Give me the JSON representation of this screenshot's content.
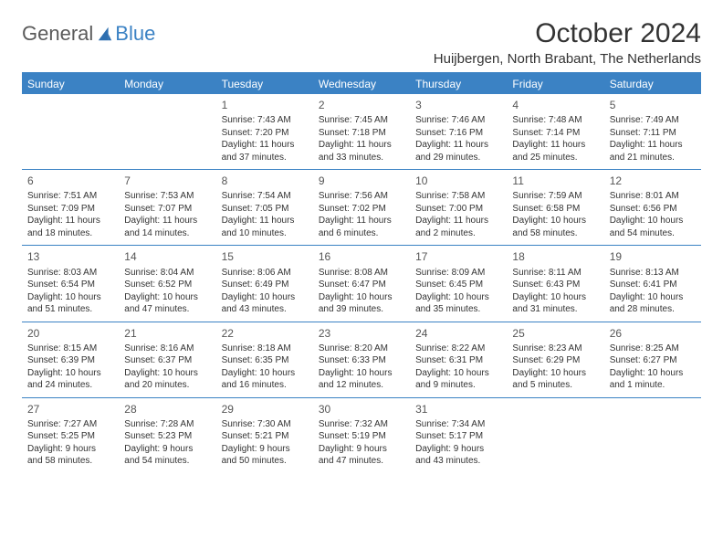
{
  "logo": {
    "part1": "General",
    "part2": "Blue"
  },
  "title": "October 2024",
  "location": "Huijbergen, North Brabant, The Netherlands",
  "colors": {
    "header_bg": "#3b82c4",
    "border": "#3b82c4",
    "text": "#333333",
    "logo_gray": "#5a5a5a",
    "logo_blue": "#3b82c4"
  },
  "day_headers": [
    "Sunday",
    "Monday",
    "Tuesday",
    "Wednesday",
    "Thursday",
    "Friday",
    "Saturday"
  ],
  "weeks": [
    [
      null,
      null,
      {
        "n": "1",
        "sunrise": "7:43 AM",
        "sunset": "7:20 PM",
        "daylight": "11 hours and 37 minutes."
      },
      {
        "n": "2",
        "sunrise": "7:45 AM",
        "sunset": "7:18 PM",
        "daylight": "11 hours and 33 minutes."
      },
      {
        "n": "3",
        "sunrise": "7:46 AM",
        "sunset": "7:16 PM",
        "daylight": "11 hours and 29 minutes."
      },
      {
        "n": "4",
        "sunrise": "7:48 AM",
        "sunset": "7:14 PM",
        "daylight": "11 hours and 25 minutes."
      },
      {
        "n": "5",
        "sunrise": "7:49 AM",
        "sunset": "7:11 PM",
        "daylight": "11 hours and 21 minutes."
      }
    ],
    [
      {
        "n": "6",
        "sunrise": "7:51 AM",
        "sunset": "7:09 PM",
        "daylight": "11 hours and 18 minutes."
      },
      {
        "n": "7",
        "sunrise": "7:53 AM",
        "sunset": "7:07 PM",
        "daylight": "11 hours and 14 minutes."
      },
      {
        "n": "8",
        "sunrise": "7:54 AM",
        "sunset": "7:05 PM",
        "daylight": "11 hours and 10 minutes."
      },
      {
        "n": "9",
        "sunrise": "7:56 AM",
        "sunset": "7:02 PM",
        "daylight": "11 hours and 6 minutes."
      },
      {
        "n": "10",
        "sunrise": "7:58 AM",
        "sunset": "7:00 PM",
        "daylight": "11 hours and 2 minutes."
      },
      {
        "n": "11",
        "sunrise": "7:59 AM",
        "sunset": "6:58 PM",
        "daylight": "10 hours and 58 minutes."
      },
      {
        "n": "12",
        "sunrise": "8:01 AM",
        "sunset": "6:56 PM",
        "daylight": "10 hours and 54 minutes."
      }
    ],
    [
      {
        "n": "13",
        "sunrise": "8:03 AM",
        "sunset": "6:54 PM",
        "daylight": "10 hours and 51 minutes."
      },
      {
        "n": "14",
        "sunrise": "8:04 AM",
        "sunset": "6:52 PM",
        "daylight": "10 hours and 47 minutes."
      },
      {
        "n": "15",
        "sunrise": "8:06 AM",
        "sunset": "6:49 PM",
        "daylight": "10 hours and 43 minutes."
      },
      {
        "n": "16",
        "sunrise": "8:08 AM",
        "sunset": "6:47 PM",
        "daylight": "10 hours and 39 minutes."
      },
      {
        "n": "17",
        "sunrise": "8:09 AM",
        "sunset": "6:45 PM",
        "daylight": "10 hours and 35 minutes."
      },
      {
        "n": "18",
        "sunrise": "8:11 AM",
        "sunset": "6:43 PM",
        "daylight": "10 hours and 31 minutes."
      },
      {
        "n": "19",
        "sunrise": "8:13 AM",
        "sunset": "6:41 PM",
        "daylight": "10 hours and 28 minutes."
      }
    ],
    [
      {
        "n": "20",
        "sunrise": "8:15 AM",
        "sunset": "6:39 PM",
        "daylight": "10 hours and 24 minutes."
      },
      {
        "n": "21",
        "sunrise": "8:16 AM",
        "sunset": "6:37 PM",
        "daylight": "10 hours and 20 minutes."
      },
      {
        "n": "22",
        "sunrise": "8:18 AM",
        "sunset": "6:35 PM",
        "daylight": "10 hours and 16 minutes."
      },
      {
        "n": "23",
        "sunrise": "8:20 AM",
        "sunset": "6:33 PM",
        "daylight": "10 hours and 12 minutes."
      },
      {
        "n": "24",
        "sunrise": "8:22 AM",
        "sunset": "6:31 PM",
        "daylight": "10 hours and 9 minutes."
      },
      {
        "n": "25",
        "sunrise": "8:23 AM",
        "sunset": "6:29 PM",
        "daylight": "10 hours and 5 minutes."
      },
      {
        "n": "26",
        "sunrise": "8:25 AM",
        "sunset": "6:27 PM",
        "daylight": "10 hours and 1 minute."
      }
    ],
    [
      {
        "n": "27",
        "sunrise": "7:27 AM",
        "sunset": "5:25 PM",
        "daylight": "9 hours and 58 minutes."
      },
      {
        "n": "28",
        "sunrise": "7:28 AM",
        "sunset": "5:23 PM",
        "daylight": "9 hours and 54 minutes."
      },
      {
        "n": "29",
        "sunrise": "7:30 AM",
        "sunset": "5:21 PM",
        "daylight": "9 hours and 50 minutes."
      },
      {
        "n": "30",
        "sunrise": "7:32 AM",
        "sunset": "5:19 PM",
        "daylight": "9 hours and 47 minutes."
      },
      {
        "n": "31",
        "sunrise": "7:34 AM",
        "sunset": "5:17 PM",
        "daylight": "9 hours and 43 minutes."
      },
      null,
      null
    ]
  ]
}
